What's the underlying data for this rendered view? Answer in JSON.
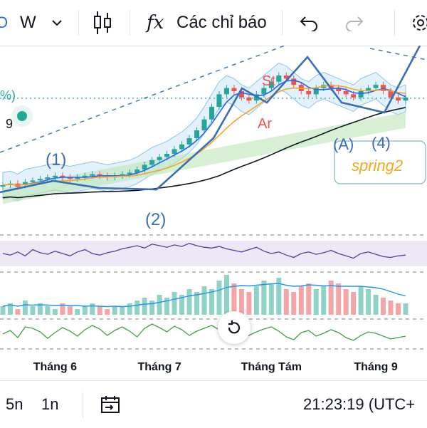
{
  "toolbar": {
    "interval": "W",
    "indicators_label": "Các chỉ báo",
    "fx_label": "fx"
  },
  "left_partial": {
    "percent_label": "%)",
    "value_label": "9"
  },
  "colors": {
    "up": "#26a69a",
    "down": "#ef5350",
    "wave_line": "#3a6fb7",
    "ma_fast": "#2962ff",
    "ma_mid": "#f5a623",
    "ma_slow": "#131722",
    "bb_fill": "#cfe7f7",
    "cloud_green": "#b7e3b0",
    "cloud_red": "#f6c2c2",
    "rsi_band": "#ede7f6",
    "rsi_line": "#5c3c9c",
    "osc_line": "#43a047"
  },
  "annotations": {
    "wave1": "(1)",
    "wave2": "(2)",
    "waveA": "(A)",
    "wave4": "(4)",
    "st": "St",
    "ar": "Ar",
    "spring": "spring2"
  },
  "chart_data": {
    "type": "candlestick",
    "timeframe": "W",
    "x_ticks": [
      "Tháng 6",
      "Tháng 7",
      "Tháng Tám",
      "Tháng 9"
    ],
    "y_range": [
      0,
      100
    ],
    "price_close": [
      20,
      21,
      19,
      22,
      23,
      24,
      25,
      26,
      25,
      24,
      25,
      26,
      27,
      26,
      25,
      26,
      27,
      28,
      30,
      33,
      36,
      38,
      40,
      43,
      46,
      50,
      55,
      62,
      70,
      78,
      82,
      80,
      76,
      74,
      78,
      82,
      86,
      90,
      88,
      84,
      80,
      78,
      82,
      84,
      82,
      80,
      78,
      76,
      80,
      82,
      84,
      80,
      76,
      74,
      76
    ],
    "price_open": [
      19,
      20,
      21,
      20,
      22,
      23,
      24,
      25,
      26,
      25,
      24,
      25,
      26,
      27,
      26,
      25,
      26,
      27,
      28,
      30,
      33,
      36,
      38,
      40,
      43,
      46,
      50,
      55,
      62,
      70,
      78,
      82,
      80,
      76,
      74,
      78,
      82,
      86,
      90,
      88,
      84,
      80,
      78,
      82,
      84,
      82,
      80,
      78,
      76,
      80,
      82,
      84,
      80,
      76,
      74
    ],
    "volume": [
      3,
      4,
      2,
      5,
      3,
      4,
      3,
      2,
      4,
      3,
      2,
      3,
      4,
      3,
      2,
      3,
      3,
      4,
      5,
      6,
      5,
      7,
      6,
      8,
      7,
      9,
      8,
      10,
      9,
      12,
      14,
      11,
      9,
      8,
      10,
      12,
      11,
      13,
      9,
      8,
      10,
      11,
      9,
      10,
      12,
      11,
      9,
      8,
      10,
      9,
      7,
      6,
      5,
      4,
      4
    ],
    "rsi": [
      50,
      48,
      52,
      47,
      55,
      51,
      49,
      53,
      50,
      47,
      52,
      55,
      50,
      48,
      51,
      53,
      56,
      58,
      60,
      57,
      62,
      60,
      58,
      61,
      59,
      63,
      60,
      58,
      57,
      59,
      56,
      54,
      52,
      55,
      58,
      53,
      50,
      52,
      48,
      45,
      50,
      52,
      49,
      51,
      54,
      50,
      47,
      44,
      50,
      52,
      49,
      46,
      45,
      47,
      48
    ],
    "osc": [
      0,
      0.5,
      -0.5,
      1,
      0.8,
      0.3,
      -0.6,
      0.2,
      0.9,
      0.4,
      -0.3,
      0.6,
      1.2,
      0.7,
      -0.2,
      0.5,
      1.0,
      0.4,
      -0.4,
      0.8,
      1.4,
      0.9,
      0.3,
      1.1,
      0.6,
      -0.2,
      0.4,
      0.8,
      1.2,
      0.6,
      0.1,
      0.5,
      -0.6,
      -0.2,
      0.3,
      0.7,
      1.0,
      0.4,
      -0.4,
      -0.8,
      0.2,
      0.5,
      -0.3,
      0.1,
      0.6,
      0.2,
      -0.5,
      -0.9,
      -0.2,
      0.3,
      0.1,
      -0.3,
      -0.7,
      -0.5,
      -0.3
    ]
  },
  "bottom_bar": {
    "range_5": "5n",
    "range_1": "1n",
    "time": "21:23:19 (UTC+"
  }
}
